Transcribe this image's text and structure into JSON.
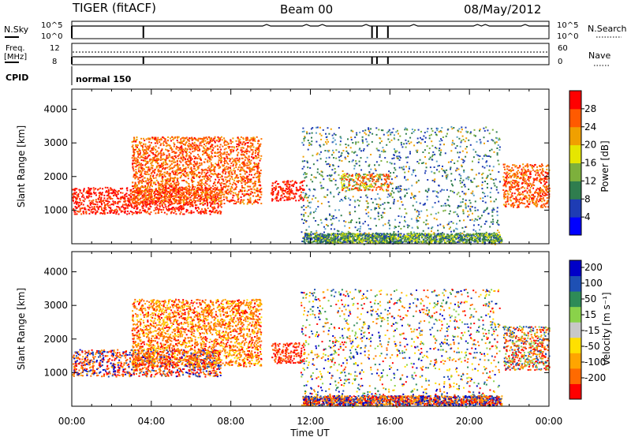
{
  "header": {
    "title": "TIGER (fitACF)",
    "beam": "Beam 00",
    "date": "08/May/2012"
  },
  "side_labels": {
    "nsky": "N.Sky",
    "freq_line1": "Freq.",
    "freq_line2": "[MHz]",
    "cpid": "CPID",
    "nsearch": "N.Search",
    "nave": "Nave"
  },
  "strips": {
    "nsky_ticks": [
      "10^5",
      "10^0"
    ],
    "nsearch_ticks": [
      "10^5",
      "10^0"
    ],
    "freq_ticks": [
      "12",
      "8"
    ],
    "nave_ticks": [
      "60",
      "0"
    ],
    "cpid_value": "normal 150"
  },
  "colors": {
    "power_scale": [
      "#0000ff",
      "#1e3cb4",
      "#2f7d4e",
      "#7db03c",
      "#e6e600",
      "#f0a000",
      "#ff5a00",
      "#ff0000"
    ],
    "velocity_scale": [
      "#ff0000",
      "#ff6a00",
      "#ffa500",
      "#ffe000",
      "#c8c8c8",
      "#8ad24a",
      "#2e8b57",
      "#1e50b4",
      "#0000c8"
    ]
  },
  "chart_data": [
    {
      "type": "heatmap",
      "panel": "power",
      "xlabel": "Time UT",
      "ylabel": "Slant Range [km]",
      "xlim": [
        "00:00",
        "24:00"
      ],
      "ylim": [
        0,
        4600
      ],
      "x_ticks": [
        "00:00",
        "04:00",
        "08:00",
        "12:00",
        "16:00",
        "20:00",
        "00:00"
      ],
      "y_ticks": [
        1000,
        2000,
        3000,
        4000
      ],
      "colorbar": {
        "label": "Power [dB]",
        "range": [
          0,
          32
        ],
        "ticks": [
          4,
          8,
          12,
          16,
          20,
          24,
          28
        ]
      },
      "echo_regions": [
        {
          "start": "00:00",
          "end": "07:30",
          "range_km": [
            900,
            1700
          ],
          "level": "28+"
        },
        {
          "start": "03:00",
          "end": "09:30",
          "range_km": [
            1200,
            3200
          ],
          "level": "20-28"
        },
        {
          "start": "10:00",
          "end": "11:40",
          "range_km": [
            1300,
            1900
          ],
          "level": "28+"
        },
        {
          "start": "11:30",
          "end": "21:30",
          "range_km": [
            0,
            3500
          ],
          "level": "4-16"
        },
        {
          "start": "13:30",
          "end": "16:00",
          "range_km": [
            1600,
            2100
          ],
          "level": "16-28"
        },
        {
          "start": "21:40",
          "end": "24:00",
          "range_km": [
            1100,
            2400
          ],
          "level": "20-28"
        }
      ]
    },
    {
      "type": "heatmap",
      "panel": "velocity",
      "xlabel": "Time UT",
      "ylabel": "Slant Range [km]",
      "xlim": [
        "00:00",
        "24:00"
      ],
      "ylim": [
        0,
        4600
      ],
      "x_ticks": [
        "00:00",
        "04:00",
        "08:00",
        "12:00",
        "16:00",
        "20:00",
        "00:00"
      ],
      "y_ticks": [
        1000,
        2000,
        3000,
        4000
      ],
      "colorbar": {
        "label": "Velocity [m s⁻¹]",
        "range": [
          -250,
          250
        ],
        "ticks": [
          "200",
          "100",
          "50",
          "15",
          "-15",
          "-50",
          "-100",
          "-200"
        ]
      },
      "echo_regions": [
        {
          "start": "00:00",
          "end": "07:30",
          "range_km": [
            900,
            1700
          ],
          "level": "-200 to 200 (mixed)"
        },
        {
          "start": "03:00",
          "end": "09:30",
          "range_km": [
            1200,
            3200
          ],
          "level": "-100 to -50"
        },
        {
          "start": "10:00",
          "end": "11:40",
          "range_km": [
            1300,
            1900
          ],
          "level": "-200 to -100"
        },
        {
          "start": "11:30",
          "end": "21:30",
          "range_km": [
            0,
            3500
          ],
          "level": "mixed"
        },
        {
          "start": "21:40",
          "end": "24:00",
          "range_km": [
            1100,
            2400
          ],
          "level": "mixed"
        }
      ]
    }
  ]
}
